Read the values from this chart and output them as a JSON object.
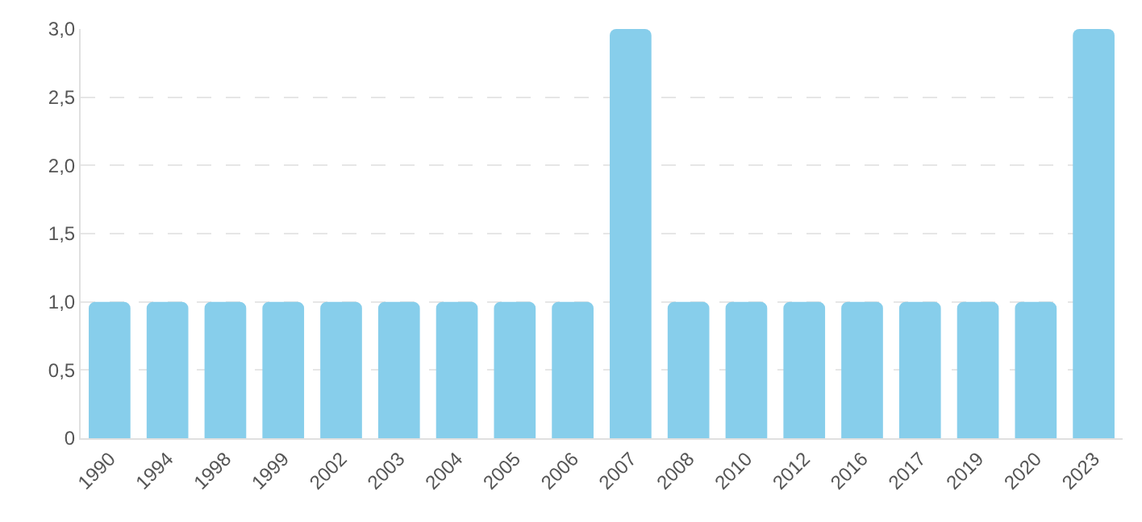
{
  "chart_data": {
    "type": "bar",
    "categories": [
      "1990",
      "1994",
      "1998",
      "1999",
      "2002",
      "2003",
      "2004",
      "2005",
      "2006",
      "2007",
      "2008",
      "2010",
      "2012",
      "2016",
      "2017",
      "2019",
      "2020",
      "2023"
    ],
    "values": [
      1,
      1,
      1,
      1,
      1,
      1,
      1,
      1,
      1,
      3,
      1,
      1,
      1,
      1,
      1,
      1,
      1,
      3
    ],
    "color": "#87ceeb",
    "ylim": [
      0,
      3
    ],
    "yticks": [
      0,
      {
        "value": 0.5,
        "label": "0,5"
      },
      {
        "value": 1,
        "label": "1,0"
      },
      {
        "value": 1.5,
        "label": "1,5"
      },
      {
        "value": 2,
        "label": "2,0"
      },
      {
        "value": 2.5,
        "label": "2,5"
      },
      {
        "value": 3,
        "label": "3,0"
      }
    ],
    "grid": "y"
  }
}
